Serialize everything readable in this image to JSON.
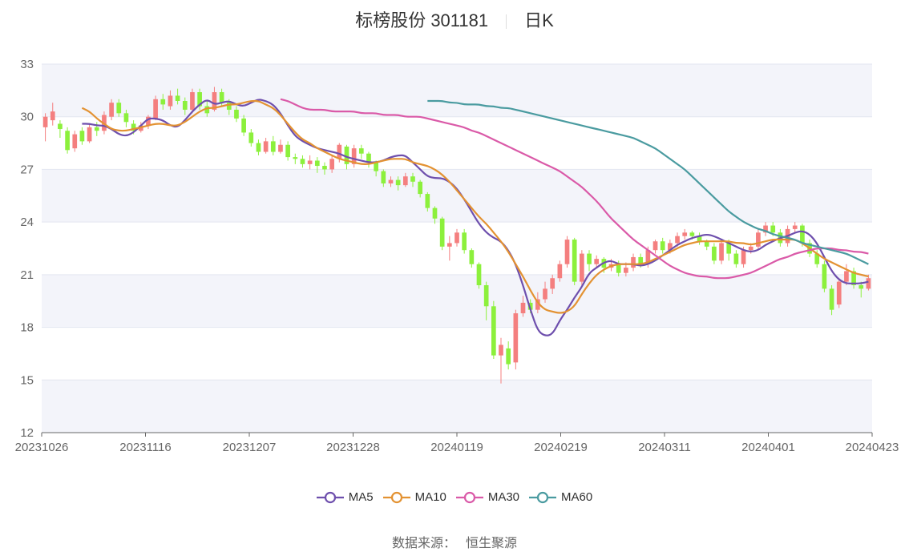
{
  "header": {
    "title": "标榜股份 301181",
    "period": "日K"
  },
  "source": {
    "label": "数据来源：",
    "value": "恒生聚源"
  },
  "colors": {
    "up": "#f47f7f",
    "down": "#8cf03c",
    "ma5": "#6e4fad",
    "ma10": "#e39232",
    "ma30": "#da5aa8",
    "ma60": "#4a9ba0",
    "grid": "#e3e6f0",
    "band": "#f3f4fa"
  },
  "chart_data": {
    "type": "candlestick",
    "title": "标榜股份 301181 日K",
    "ylim": [
      12,
      33
    ],
    "yticks": [
      12,
      15,
      18,
      21,
      24,
      27,
      30,
      33
    ],
    "xtick_labels": [
      "20231026",
      "20231116",
      "20231207",
      "20231228",
      "20240119",
      "20240219",
      "20240311",
      "20240401",
      "20240423"
    ],
    "legend_position": "bottom",
    "candles": [
      {
        "o": 29.4,
        "c": 30.0,
        "h": 30.2,
        "l": 28.6
      },
      {
        "o": 29.8,
        "c": 30.3,
        "h": 30.8,
        "l": 29.5
      },
      {
        "o": 29.6,
        "c": 29.3,
        "h": 29.8,
        "l": 28.8
      },
      {
        "o": 29.2,
        "c": 28.1,
        "h": 29.4,
        "l": 27.9
      },
      {
        "o": 28.2,
        "c": 29.0,
        "h": 29.2,
        "l": 28.0
      },
      {
        "o": 29.2,
        "c": 28.6,
        "h": 29.4,
        "l": 28.4
      },
      {
        "o": 28.6,
        "c": 29.4,
        "h": 29.6,
        "l": 28.5
      },
      {
        "o": 29.4,
        "c": 29.2,
        "h": 29.7,
        "l": 28.9
      },
      {
        "o": 29.2,
        "c": 30.1,
        "h": 30.3,
        "l": 29.0
      },
      {
        "o": 30.0,
        "c": 30.8,
        "h": 31.0,
        "l": 29.8
      },
      {
        "o": 30.8,
        "c": 30.2,
        "h": 31.0,
        "l": 30.0
      },
      {
        "o": 30.2,
        "c": 29.7,
        "h": 30.4,
        "l": 29.4
      },
      {
        "o": 29.6,
        "c": 29.2,
        "h": 29.8,
        "l": 29.0
      },
      {
        "o": 29.2,
        "c": 29.5,
        "h": 29.7,
        "l": 29.1
      },
      {
        "o": 29.5,
        "c": 30.0,
        "h": 30.1,
        "l": 29.3
      },
      {
        "o": 29.9,
        "c": 31.0,
        "h": 31.2,
        "l": 29.8
      },
      {
        "o": 31.0,
        "c": 30.7,
        "h": 31.3,
        "l": 30.4
      },
      {
        "o": 30.6,
        "c": 31.2,
        "h": 31.5,
        "l": 30.4
      },
      {
        "o": 31.2,
        "c": 30.9,
        "h": 31.6,
        "l": 30.7
      },
      {
        "o": 30.9,
        "c": 30.4,
        "h": 31.1,
        "l": 30.1
      },
      {
        "o": 30.4,
        "c": 31.4,
        "h": 31.6,
        "l": 30.2
      },
      {
        "o": 31.4,
        "c": 30.6,
        "h": 31.6,
        "l": 30.4
      },
      {
        "o": 30.6,
        "c": 30.2,
        "h": 30.9,
        "l": 30.0
      },
      {
        "o": 30.4,
        "c": 31.4,
        "h": 31.7,
        "l": 30.3
      },
      {
        "o": 31.4,
        "c": 30.8,
        "h": 31.6,
        "l": 30.6
      },
      {
        "o": 30.8,
        "c": 30.4,
        "h": 31.0,
        "l": 30.1
      },
      {
        "o": 30.4,
        "c": 29.9,
        "h": 30.6,
        "l": 29.7
      },
      {
        "o": 29.9,
        "c": 29.1,
        "h": 30.1,
        "l": 28.9
      },
      {
        "o": 29.1,
        "c": 28.5,
        "h": 29.3,
        "l": 28.3
      },
      {
        "o": 28.5,
        "c": 28.0,
        "h": 28.7,
        "l": 27.8
      },
      {
        "o": 28.0,
        "c": 28.6,
        "h": 28.8,
        "l": 27.9
      },
      {
        "o": 28.6,
        "c": 28.0,
        "h": 28.9,
        "l": 27.8
      },
      {
        "o": 28.0,
        "c": 28.4,
        "h": 28.7,
        "l": 27.9
      },
      {
        "o": 28.4,
        "c": 27.7,
        "h": 28.6,
        "l": 27.5
      },
      {
        "o": 27.7,
        "c": 27.6,
        "h": 27.9,
        "l": 27.3
      },
      {
        "o": 27.6,
        "c": 27.3,
        "h": 27.8,
        "l": 27.1
      },
      {
        "o": 27.3,
        "c": 27.5,
        "h": 27.8,
        "l": 27.0
      },
      {
        "o": 27.5,
        "c": 27.2,
        "h": 27.7,
        "l": 26.8
      },
      {
        "o": 27.2,
        "c": 27.0,
        "h": 27.4,
        "l": 26.7
      },
      {
        "o": 27.0,
        "c": 27.6,
        "h": 27.8,
        "l": 26.8
      },
      {
        "o": 27.6,
        "c": 28.4,
        "h": 28.5,
        "l": 27.4
      },
      {
        "o": 28.3,
        "c": 27.3,
        "h": 28.4,
        "l": 27.0
      },
      {
        "o": 27.3,
        "c": 28.2,
        "h": 28.4,
        "l": 27.1
      },
      {
        "o": 28.2,
        "c": 27.9,
        "h": 28.4,
        "l": 27.6
      },
      {
        "o": 27.9,
        "c": 27.4,
        "h": 28.0,
        "l": 27.1
      },
      {
        "o": 27.4,
        "c": 26.9,
        "h": 27.5,
        "l": 26.6
      },
      {
        "o": 26.9,
        "c": 26.2,
        "h": 27.0,
        "l": 26.0
      },
      {
        "o": 26.2,
        "c": 26.4,
        "h": 26.6,
        "l": 26.0
      },
      {
        "o": 26.4,
        "c": 26.1,
        "h": 26.6,
        "l": 25.8
      },
      {
        "o": 26.1,
        "c": 26.6,
        "h": 26.8,
        "l": 26.0
      },
      {
        "o": 26.6,
        "c": 26.3,
        "h": 26.8,
        "l": 26.0
      },
      {
        "o": 26.3,
        "c": 25.6,
        "h": 26.4,
        "l": 25.4
      },
      {
        "o": 25.6,
        "c": 24.8,
        "h": 25.7,
        "l": 24.6
      },
      {
        "o": 24.8,
        "c": 24.2,
        "h": 24.9,
        "l": 23.9
      },
      {
        "o": 24.2,
        "c": 22.6,
        "h": 24.3,
        "l": 22.4
      },
      {
        "o": 22.6,
        "c": 22.8,
        "h": 23.2,
        "l": 21.8
      },
      {
        "o": 22.8,
        "c": 23.4,
        "h": 23.6,
        "l": 22.6
      },
      {
        "o": 23.4,
        "c": 22.4,
        "h": 23.6,
        "l": 22.2
      },
      {
        "o": 22.4,
        "c": 21.6,
        "h": 22.5,
        "l": 21.4
      },
      {
        "o": 21.6,
        "c": 20.4,
        "h": 21.7,
        "l": 20.2
      },
      {
        "o": 20.4,
        "c": 19.2,
        "h": 20.6,
        "l": 18.4
      },
      {
        "o": 19.2,
        "c": 16.4,
        "h": 19.5,
        "l": 16.2
      },
      {
        "o": 16.4,
        "c": 17.0,
        "h": 17.4,
        "l": 14.8
      },
      {
        "o": 16.8,
        "c": 15.9,
        "h": 17.2,
        "l": 15.6
      },
      {
        "o": 16.0,
        "c": 18.8,
        "h": 19.0,
        "l": 15.6
      },
      {
        "o": 18.8,
        "c": 19.4,
        "h": 19.8,
        "l": 18.6
      },
      {
        "o": 19.4,
        "c": 19.0,
        "h": 19.6,
        "l": 18.8
      },
      {
        "o": 19.0,
        "c": 19.6,
        "h": 20.0,
        "l": 18.8
      },
      {
        "o": 19.6,
        "c": 20.2,
        "h": 20.6,
        "l": 19.4
      },
      {
        "o": 20.2,
        "c": 20.8,
        "h": 21.0,
        "l": 19.9
      },
      {
        "o": 20.8,
        "c": 21.6,
        "h": 21.8,
        "l": 20.6
      },
      {
        "o": 21.6,
        "c": 23.0,
        "h": 23.2,
        "l": 21.4
      },
      {
        "o": 23.0,
        "c": 20.6,
        "h": 23.1,
        "l": 20.4
      },
      {
        "o": 20.6,
        "c": 22.2,
        "h": 22.4,
        "l": 20.4
      },
      {
        "o": 22.2,
        "c": 21.6,
        "h": 22.4,
        "l": 21.2
      },
      {
        "o": 21.6,
        "c": 21.9,
        "h": 22.1,
        "l": 21.4
      },
      {
        "o": 21.9,
        "c": 21.4,
        "h": 22.0,
        "l": 21.1
      },
      {
        "o": 21.4,
        "c": 21.6,
        "h": 21.9,
        "l": 21.2
      },
      {
        "o": 21.6,
        "c": 21.1,
        "h": 21.8,
        "l": 20.9
      },
      {
        "o": 21.1,
        "c": 21.4,
        "h": 21.7,
        "l": 20.9
      },
      {
        "o": 21.4,
        "c": 22.0,
        "h": 22.2,
        "l": 21.2
      },
      {
        "o": 22.0,
        "c": 21.6,
        "h": 22.2,
        "l": 21.4
      },
      {
        "o": 21.6,
        "c": 22.4,
        "h": 22.6,
        "l": 21.4
      },
      {
        "o": 22.4,
        "c": 22.9,
        "h": 23.0,
        "l": 22.2
      },
      {
        "o": 22.9,
        "c": 22.4,
        "h": 23.1,
        "l": 22.2
      },
      {
        "o": 22.4,
        "c": 22.8,
        "h": 23.0,
        "l": 22.2
      },
      {
        "o": 22.8,
        "c": 23.2,
        "h": 23.4,
        "l": 22.6
      },
      {
        "o": 23.2,
        "c": 23.4,
        "h": 23.6,
        "l": 23.0
      },
      {
        "o": 23.4,
        "c": 23.2,
        "h": 23.5,
        "l": 23.0
      },
      {
        "o": 23.2,
        "c": 22.9,
        "h": 23.4,
        "l": 22.7
      },
      {
        "o": 22.9,
        "c": 22.6,
        "h": 23.0,
        "l": 22.4
      },
      {
        "o": 22.6,
        "c": 21.8,
        "h": 22.8,
        "l": 21.6
      },
      {
        "o": 21.8,
        "c": 22.8,
        "h": 23.0,
        "l": 21.6
      },
      {
        "o": 22.8,
        "c": 22.2,
        "h": 23.0,
        "l": 21.8
      },
      {
        "o": 22.2,
        "c": 21.6,
        "h": 22.4,
        "l": 21.4
      },
      {
        "o": 21.6,
        "c": 22.4,
        "h": 22.6,
        "l": 21.4
      },
      {
        "o": 22.4,
        "c": 22.6,
        "h": 22.8,
        "l": 22.2
      },
      {
        "o": 22.6,
        "c": 23.4,
        "h": 23.6,
        "l": 22.4
      },
      {
        "o": 23.4,
        "c": 23.8,
        "h": 24.0,
        "l": 23.2
      },
      {
        "o": 23.8,
        "c": 23.4,
        "h": 24.0,
        "l": 23.2
      },
      {
        "o": 23.4,
        "c": 22.8,
        "h": 23.6,
        "l": 22.6
      },
      {
        "o": 22.8,
        "c": 23.6,
        "h": 23.8,
        "l": 22.6
      },
      {
        "o": 23.6,
        "c": 23.8,
        "h": 24.0,
        "l": 23.4
      },
      {
        "o": 23.8,
        "c": 22.8,
        "h": 23.9,
        "l": 22.6
      },
      {
        "o": 22.8,
        "c": 22.2,
        "h": 23.0,
        "l": 22.0
      },
      {
        "o": 22.2,
        "c": 21.6,
        "h": 22.4,
        "l": 21.4
      },
      {
        "o": 21.6,
        "c": 20.2,
        "h": 21.8,
        "l": 20.0
      },
      {
        "o": 20.2,
        "c": 19.0,
        "h": 20.4,
        "l": 18.7
      },
      {
        "o": 19.3,
        "c": 20.6,
        "h": 20.8,
        "l": 19.1
      },
      {
        "o": 20.6,
        "c": 21.2,
        "h": 21.6,
        "l": 20.4
      },
      {
        "o": 21.2,
        "c": 20.4,
        "h": 21.4,
        "l": 20.2
      },
      {
        "o": 20.4,
        "c": 20.2,
        "h": 20.6,
        "l": 19.7
      },
      {
        "o": 20.2,
        "c": 20.8,
        "h": 21.0,
        "l": 20.1
      }
    ],
    "series": [
      {
        "name": "MA5",
        "values": [
          29.6,
          29.6,
          29.5,
          29.5,
          29.3,
          29.0,
          28.9,
          29.1,
          29.5,
          29.9,
          29.9,
          29.8,
          29.5,
          29.4,
          29.8,
          30.3,
          30.7,
          31.0,
          30.7,
          30.8,
          30.9,
          30.7,
          30.6,
          30.8,
          31.0,
          30.9,
          30.7,
          30.2,
          29.5,
          28.9,
          28.6,
          28.4,
          28.2,
          28.1,
          28.0,
          27.9,
          27.7,
          27.6,
          27.5,
          27.4,
          27.4,
          27.5,
          27.7,
          27.8,
          27.8,
          27.4,
          27.0,
          26.6,
          26.5,
          26.5,
          26.3,
          25.9,
          25.3,
          24.6,
          23.9,
          23.4,
          23.1,
          22.9,
          22.4,
          21.6,
          20.4,
          19.0,
          17.8,
          17.5,
          17.6,
          18.4,
          19.0,
          19.7,
          20.3,
          21.1,
          21.4,
          21.7,
          21.8,
          21.6,
          21.6,
          21.6,
          21.5,
          21.6,
          21.8,
          22.1,
          22.4,
          22.7,
          22.9,
          23.1,
          23.2,
          23.3,
          23.2,
          23.0,
          22.8,
          22.6,
          22.4,
          22.3,
          22.4,
          22.7,
          22.9,
          23.1,
          23.2,
          23.4,
          23.5,
          23.3,
          22.8,
          22.0,
          21.2,
          20.7,
          20.5,
          20.5,
          20.5,
          20.6
        ]
      },
      {
        "name": "MA10",
        "values": [
          30.5,
          30.3,
          29.9,
          29.6,
          29.3,
          29.2,
          29.2,
          29.3,
          29.4,
          29.5,
          29.6,
          29.6,
          29.5,
          29.5,
          29.7,
          30.0,
          30.3,
          30.5,
          30.5,
          30.6,
          30.7,
          30.7,
          30.8,
          30.9,
          30.9,
          30.7,
          30.5,
          30.1,
          29.6,
          29.1,
          28.7,
          28.5,
          28.2,
          28.0,
          27.8,
          27.6,
          27.5,
          27.4,
          27.3,
          27.3,
          27.4,
          27.5,
          27.6,
          27.6,
          27.6,
          27.4,
          27.3,
          27.2,
          27.0,
          26.7,
          26.3,
          25.8,
          25.3,
          24.8,
          24.3,
          23.9,
          23.4,
          22.9,
          22.3,
          21.6,
          20.9,
          20.1,
          19.4,
          19.0,
          18.9,
          18.8,
          18.9,
          19.2,
          19.9,
          20.5,
          21.0,
          21.3,
          21.5,
          21.6,
          21.6,
          21.6,
          21.6,
          21.7,
          21.9,
          22.1,
          22.3,
          22.5,
          22.7,
          22.8,
          22.9,
          22.9,
          22.9,
          22.9,
          22.9,
          22.8,
          22.8,
          22.7,
          22.8,
          22.9,
          23.0,
          23.0,
          23.0,
          23.0,
          22.8,
          22.5,
          22.2,
          21.9,
          21.7,
          21.5,
          21.3,
          21.1,
          21.0,
          20.9
        ]
      },
      {
        "name": "MA30",
        "values": [
          31.0,
          30.9,
          30.7,
          30.5,
          30.4,
          30.4,
          30.4,
          30.3,
          30.3,
          30.3,
          30.3,
          30.2,
          30.2,
          30.2,
          30.1,
          30.1,
          30.1,
          30.0,
          30.0,
          30.0,
          29.9,
          29.8,
          29.7,
          29.6,
          29.5,
          29.4,
          29.2,
          29.1,
          28.9,
          28.7,
          28.5,
          28.3,
          28.1,
          27.9,
          27.7,
          27.5,
          27.3,
          27.1,
          26.9,
          26.6,
          26.3,
          26.0,
          25.6,
          25.2,
          24.7,
          24.2,
          23.8,
          23.4,
          23.0,
          22.7,
          22.4,
          22.1,
          21.8,
          21.5,
          21.3,
          21.1,
          21.0,
          20.9,
          20.9,
          20.8,
          20.8,
          20.8,
          20.9,
          21.0,
          21.1,
          21.3,
          21.5,
          21.7,
          21.9,
          22.0,
          22.2,
          22.3,
          22.4,
          22.5,
          22.5,
          22.5,
          22.4,
          22.4,
          22.3,
          22.3,
          22.2
        ]
      },
      {
        "name": "MA60",
        "values": [
          30.9,
          30.9,
          30.9,
          30.8,
          30.8,
          30.7,
          30.7,
          30.7,
          30.6,
          30.6,
          30.5,
          30.5,
          30.4,
          30.3,
          30.2,
          30.1,
          30.0,
          29.9,
          29.8,
          29.7,
          29.6,
          29.5,
          29.4,
          29.3,
          29.2,
          29.1,
          29.0,
          28.9,
          28.8,
          28.6,
          28.4,
          28.2,
          27.9,
          27.6,
          27.3,
          27.0,
          26.6,
          26.2,
          25.8,
          25.4,
          25.0,
          24.6,
          24.3,
          24.0,
          23.8,
          23.6,
          23.5,
          23.3,
          23.2,
          23.1,
          23.0,
          22.8,
          22.7,
          22.6,
          22.5,
          22.4,
          22.3,
          22.2,
          22.0,
          21.8,
          21.6
        ]
      }
    ]
  },
  "legend": [
    {
      "name": "MA5",
      "color_key": "ma5"
    },
    {
      "name": "MA10",
      "color_key": "ma10"
    },
    {
      "name": "MA30",
      "color_key": "ma30"
    },
    {
      "name": "MA60",
      "color_key": "ma60"
    }
  ]
}
